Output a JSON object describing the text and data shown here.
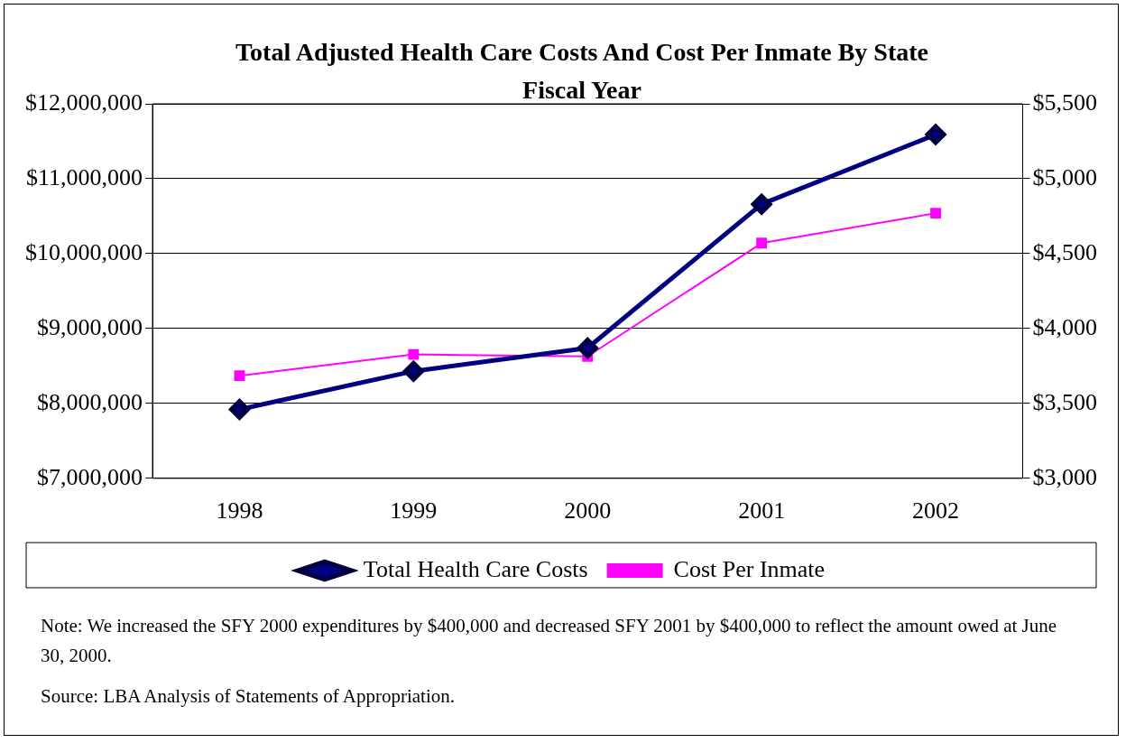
{
  "chart_data": {
    "type": "line",
    "title": "Total Adjusted Health Care Costs And Cost Per Inmate By State Fiscal Year",
    "categories": [
      "1998",
      "1999",
      "2000",
      "2001",
      "2002"
    ],
    "series": [
      {
        "name": "Total Health Care Costs",
        "color": "#000080",
        "values": [
          7920000,
          8430000,
          8740000,
          10660000,
          11590000
        ],
        "marker": "diamond"
      },
      {
        "name": "Cost Per Inmate",
        "color": "#ff00ff",
        "values": [
          3685,
          3827,
          3814,
          4570,
          4770
        ],
        "axis": "y2",
        "marker": "square"
      }
    ],
    "ylim": [
      7000000,
      12000000
    ],
    "yticks": [
      {
        "value": 7000000,
        "label": "$7,000,000"
      },
      {
        "value": 8000000,
        "label": "$8,000,000"
      },
      {
        "value": 9000000,
        "label": "$9,000,000"
      },
      {
        "value": 10000000,
        "label": "$10,000,000"
      },
      {
        "value": 11000000,
        "label": "$11,000,000"
      },
      {
        "value": 12000000,
        "label": "$12,000,000"
      }
    ],
    "y2lim": [
      3000,
      5500
    ],
    "y2ticks": [
      {
        "value": 3000,
        "label": "$3,000"
      },
      {
        "value": 3500,
        "label": "$3,500"
      },
      {
        "value": 4000,
        "label": "$4,000"
      },
      {
        "value": 4500,
        "label": "$4,500"
      },
      {
        "value": 5000,
        "label": "$5,000"
      },
      {
        "value": 5500,
        "label": "$5,500"
      }
    ],
    "grid": "y",
    "legend": "bottom",
    "annotations": [
      "Note: We increased the SFY 2000 expenditures by $400,000 and decreased SFY 2001 by $400,000 to reflect the amount owed at June 30, 2000.",
      "Source: LBA Analysis of Statements of Appropriation."
    ]
  }
}
